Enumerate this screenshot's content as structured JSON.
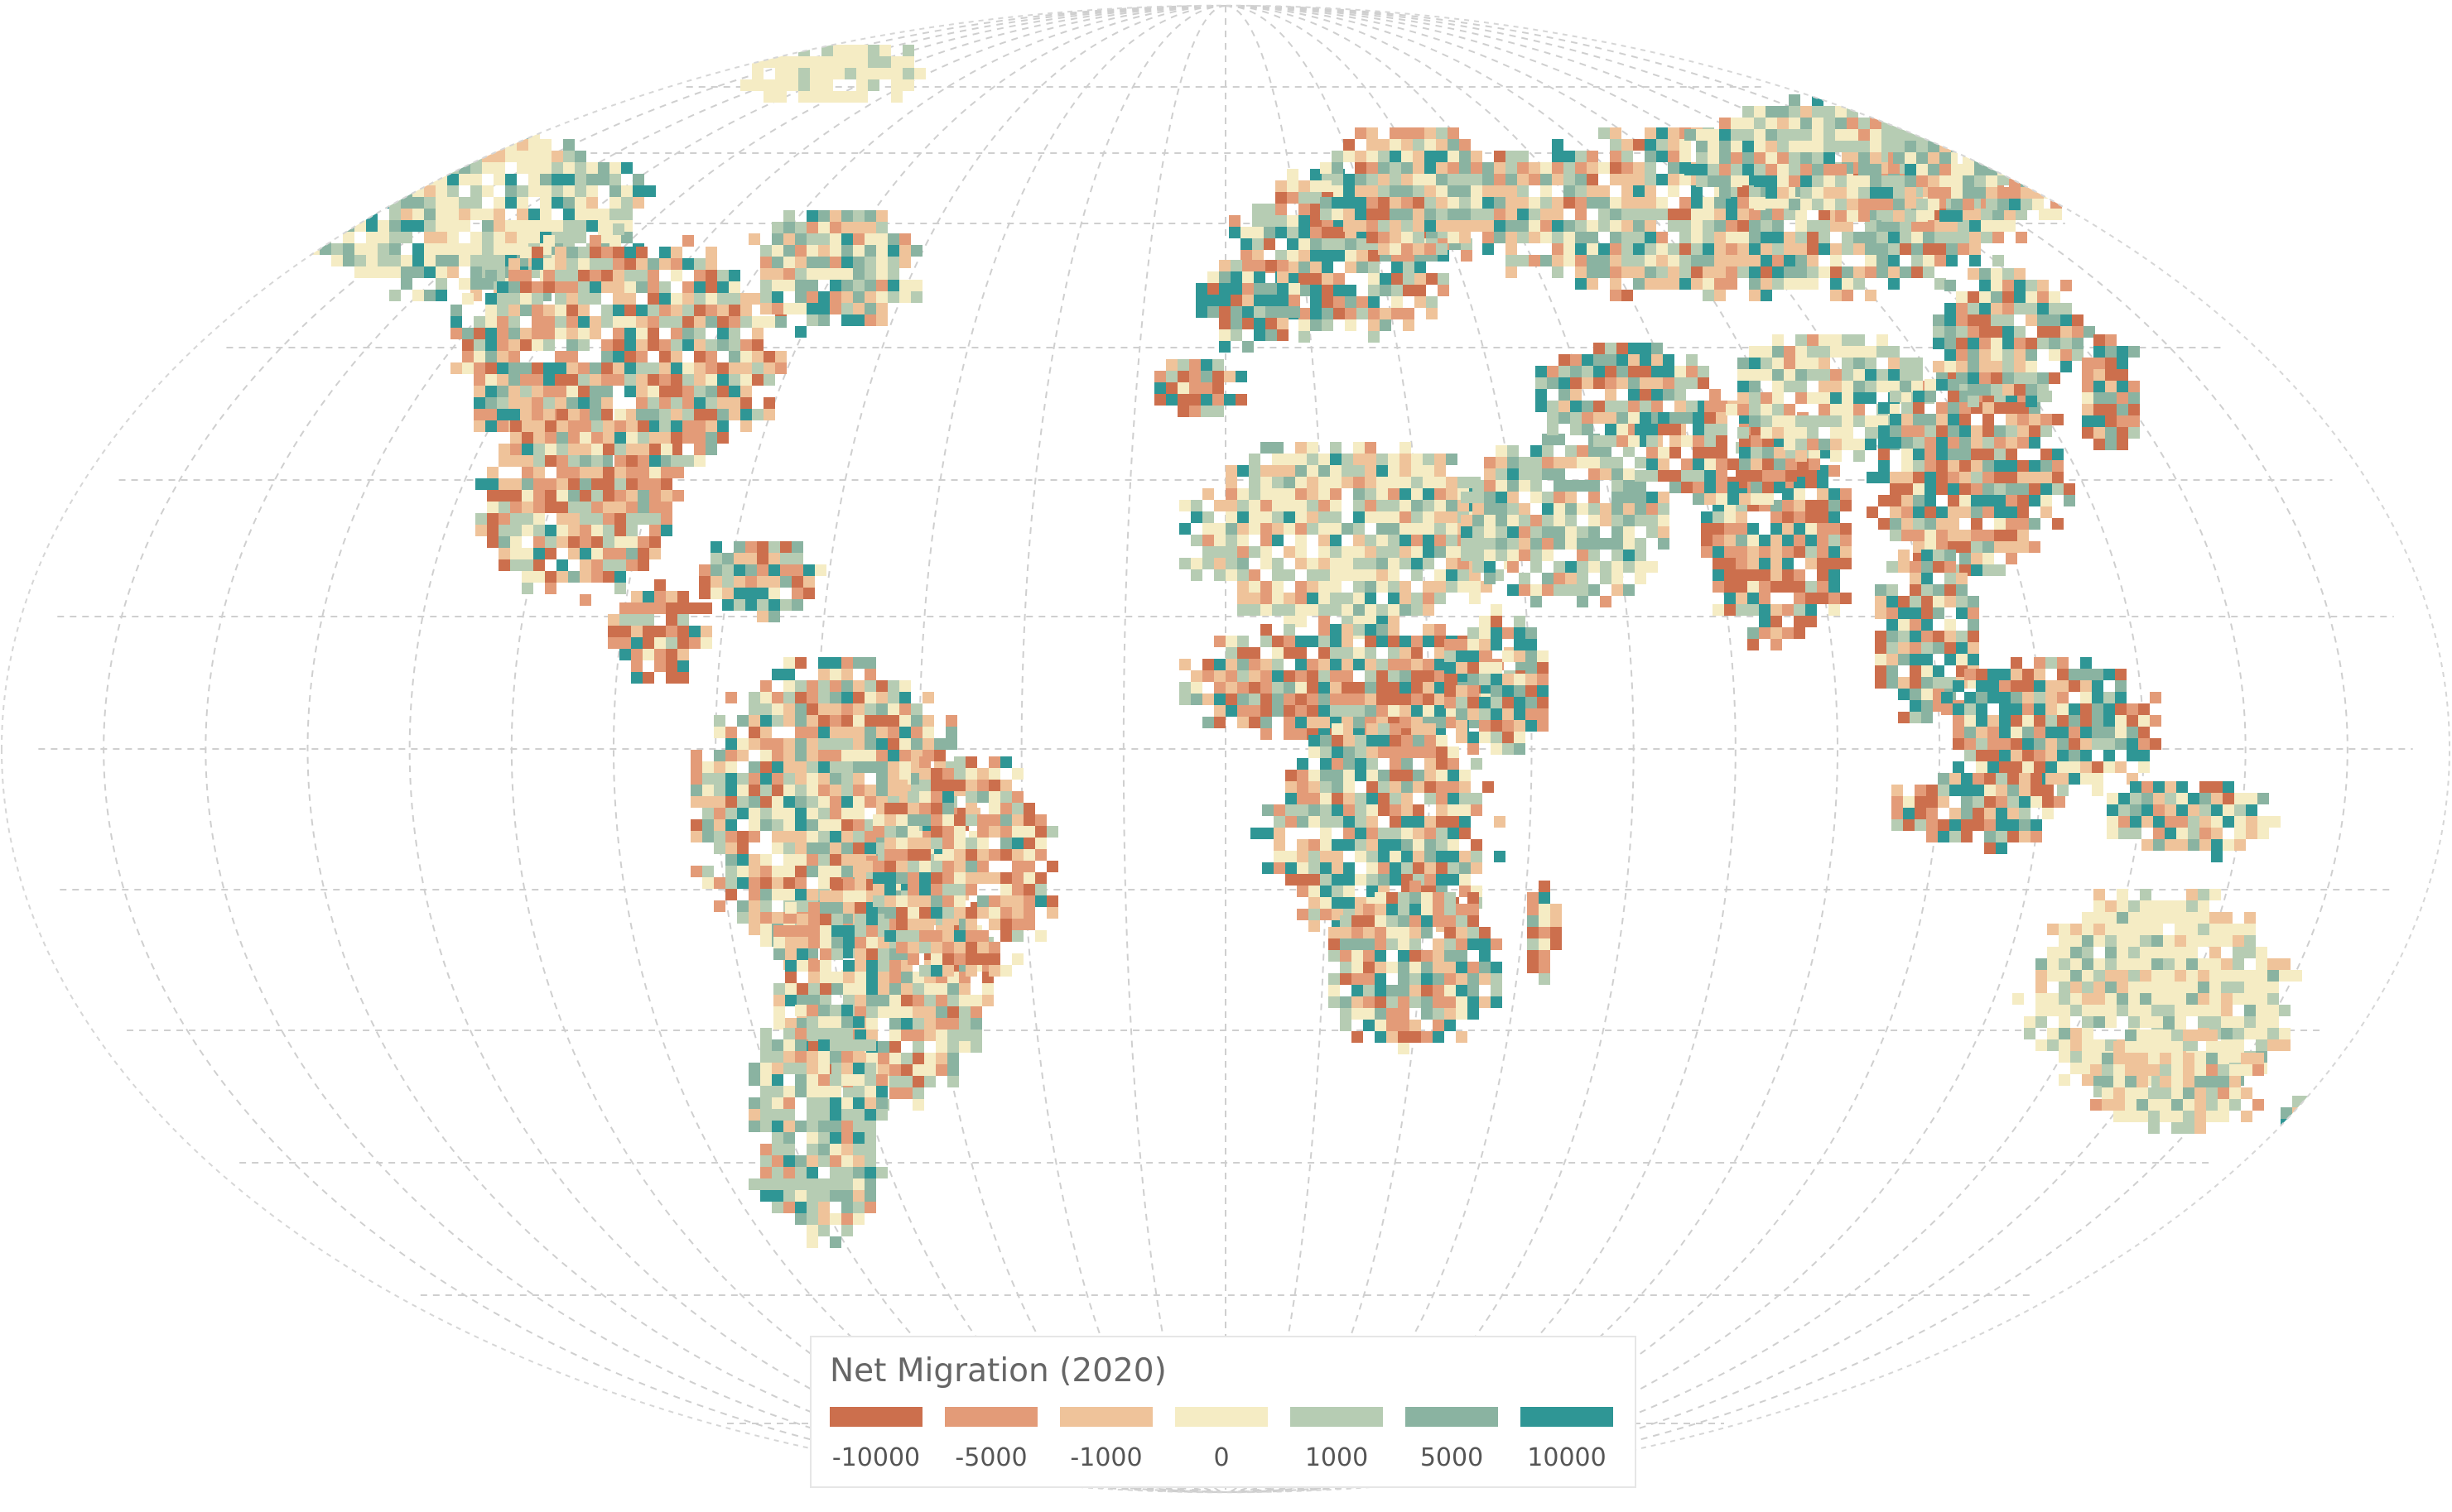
{
  "map": {
    "projection": "Robinson",
    "graticule": "dashed",
    "background": "#ffffff",
    "colors": {
      "neg10000": "#cc6f4d",
      "neg5000": "#e39b78",
      "neg1000": "#efc39a",
      "zero": "#f5ecc4",
      "pos1000": "#b6ccb3",
      "pos5000": "#8ab3a1",
      "pos10000": "#2f9695"
    },
    "regions": [
      {
        "name": "North America",
        "dominant": "mixed"
      },
      {
        "name": "Central America",
        "dominant": "negative"
      },
      {
        "name": "South America",
        "dominant": "mixed"
      },
      {
        "name": "Europe",
        "dominant": "mixed"
      },
      {
        "name": "Africa",
        "dominant": "mixed"
      },
      {
        "name": "Middle East",
        "dominant": "positive"
      },
      {
        "name": "South Asia",
        "dominant": "negative"
      },
      {
        "name": "East Asia",
        "dominant": "mixed"
      },
      {
        "name": "Southeast Asia",
        "dominant": "mixed"
      },
      {
        "name": "Australia",
        "dominant": "neutral"
      },
      {
        "name": "Greenland",
        "dominant": "neutral"
      }
    ]
  },
  "legend": {
    "title": "Net Migration (2020)",
    "items": [
      {
        "label": "-10000",
        "color": "#cc6f4d"
      },
      {
        "label": "-5000",
        "color": "#e39b78"
      },
      {
        "label": "-1000",
        "color": "#efc39a"
      },
      {
        "label": "0",
        "color": "#f5ecc4"
      },
      {
        "label": "1000",
        "color": "#b6ccb3"
      },
      {
        "label": "5000",
        "color": "#8ab3a1"
      },
      {
        "label": "10000",
        "color": "#2f9695"
      }
    ]
  }
}
